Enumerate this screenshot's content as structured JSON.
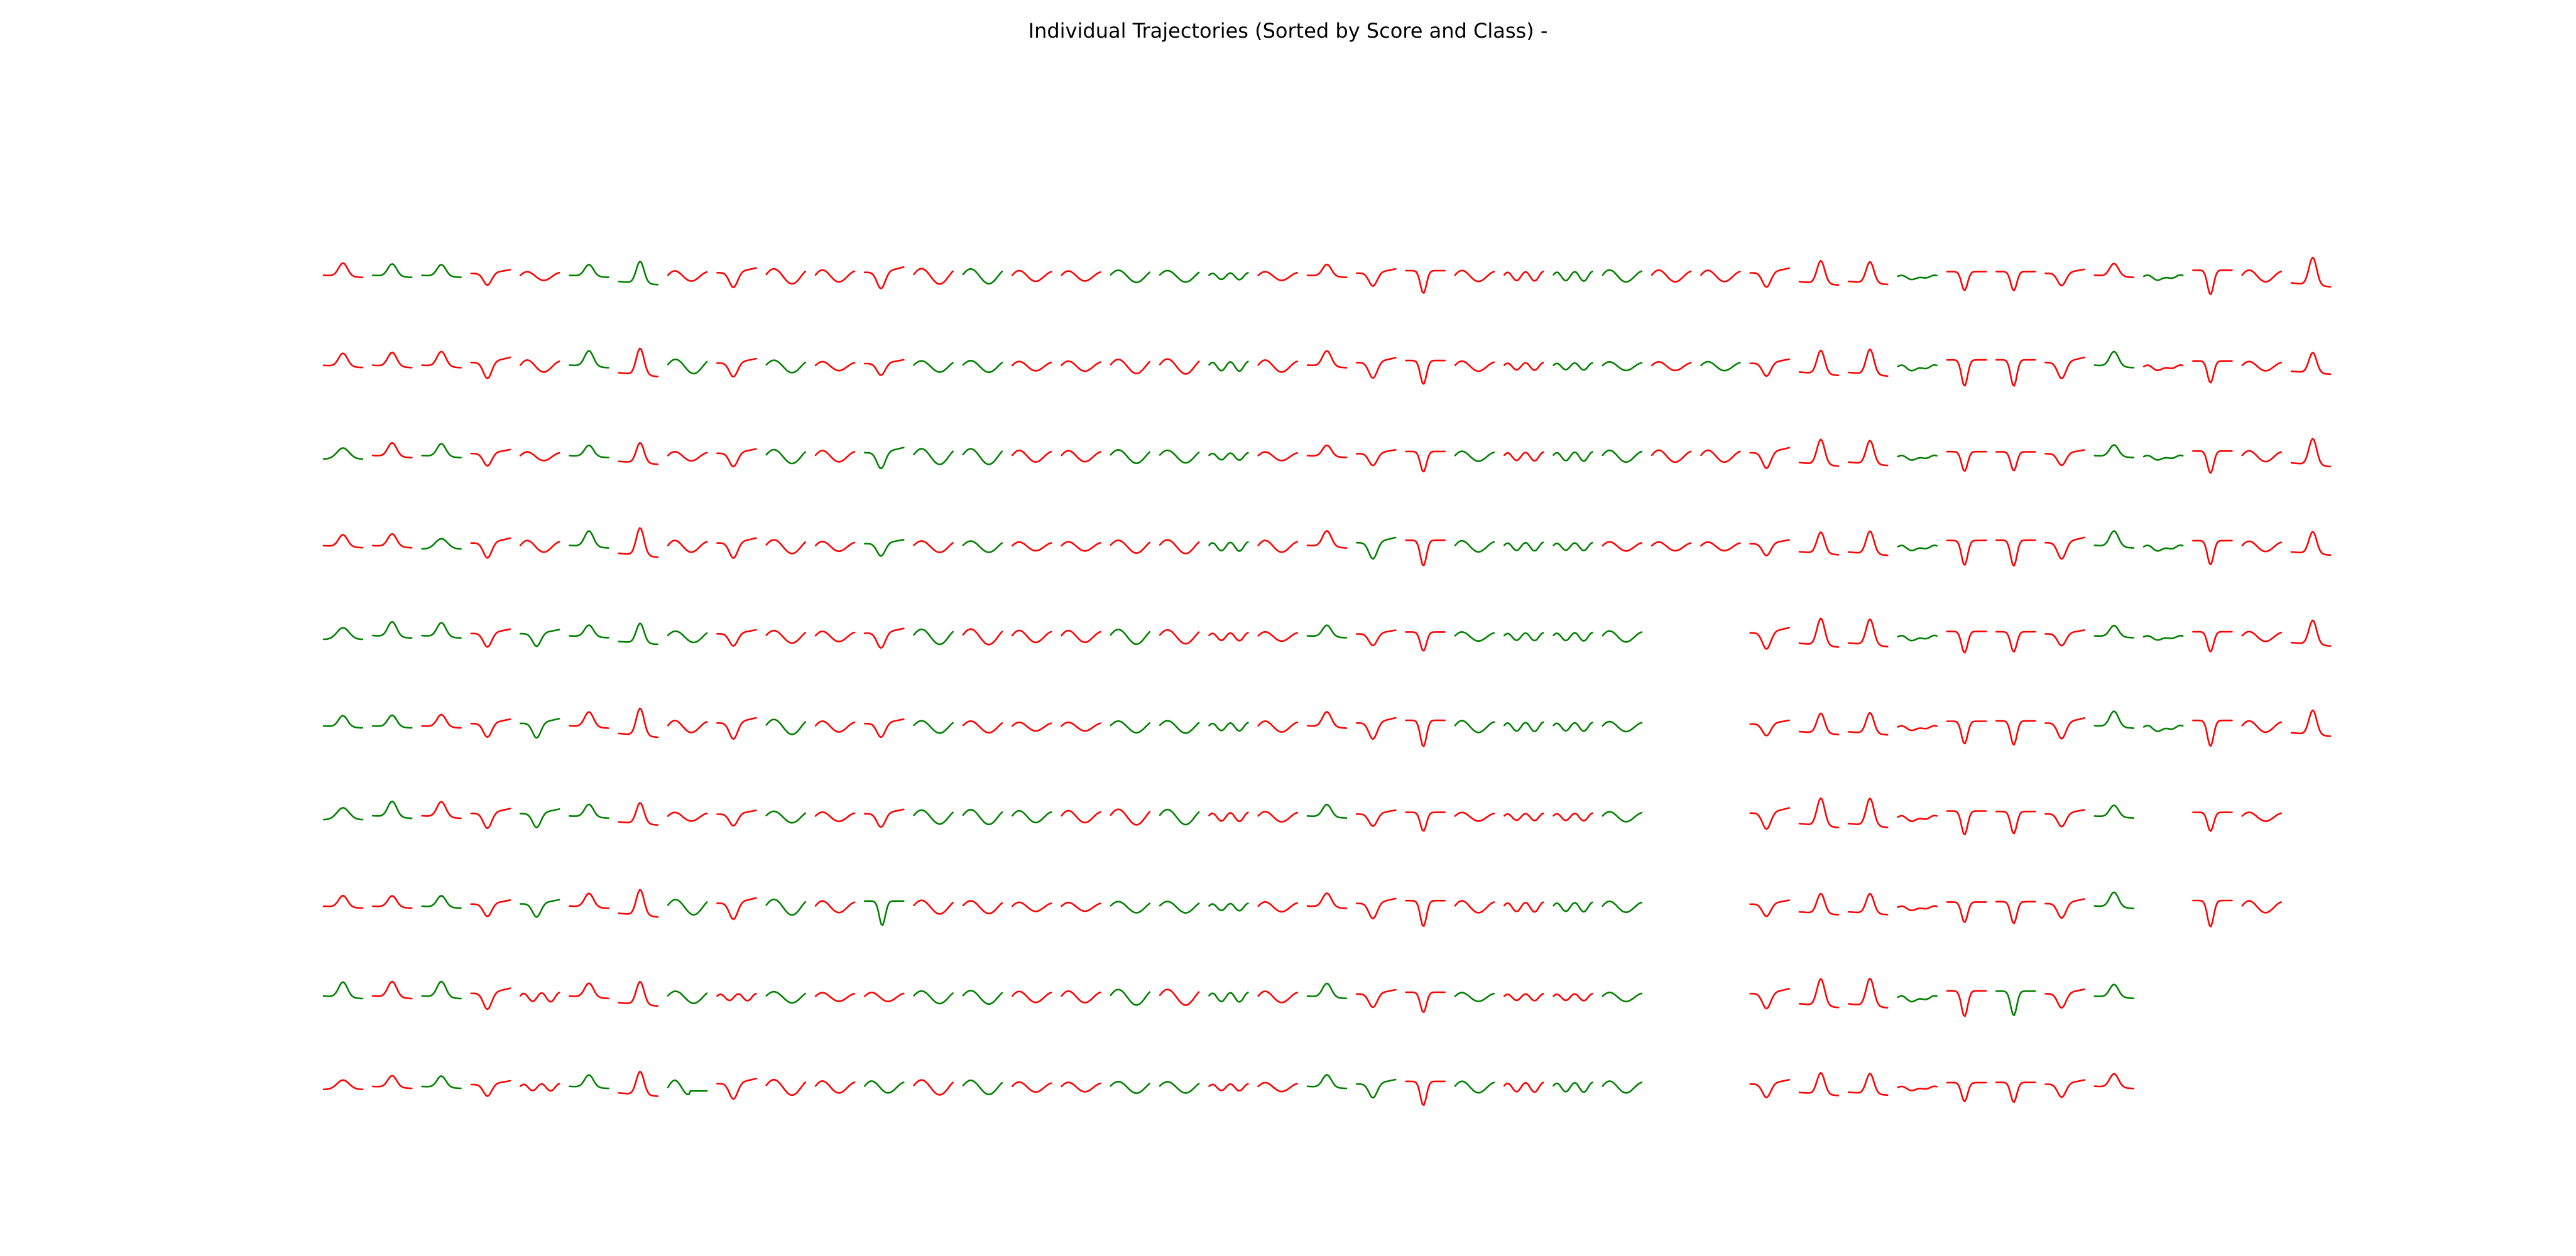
{
  "chart_data": {
    "type": "line",
    "title": "Individual Trajectories (Sorted by Score and Class) -",
    "xlabel": "",
    "ylabel": "",
    "axes_visible": false,
    "grid": false,
    "colors": {
      "class_red": "#ff0000",
      "class_green": "#008000"
    },
    "rows_per_column": 10,
    "columns": [
      {
        "color": [
          "r",
          "r",
          "g",
          "r",
          "g",
          "g",
          "g",
          "r",
          "g",
          "r"
        ],
        "shape": [
          "peak",
          "peak",
          "wide",
          "peak",
          "wide",
          "peak",
          "wide",
          "peak",
          "peak",
          "wide"
        ]
      },
      {
        "color": [
          "g",
          "r",
          "r",
          "r",
          "g",
          "g",
          "g",
          "r",
          "r",
          "r"
        ],
        "shape": [
          "peak",
          "peak",
          "peak",
          "peak",
          "peak",
          "peak",
          "peak",
          "peak",
          "peak",
          "peak"
        ]
      },
      {
        "color": [
          "g",
          "r",
          "g",
          "g",
          "g",
          "r",
          "r",
          "g",
          "g",
          "g"
        ],
        "shape": [
          "peak",
          "peak",
          "peak",
          "wide",
          "peak",
          "peak",
          "peak",
          "peak",
          "peak",
          "peak"
        ]
      },
      {
        "color": [
          "r",
          "r",
          "r",
          "r",
          "r",
          "r",
          "r",
          "r",
          "r",
          "r"
        ],
        "shape": [
          "valley",
          "valley",
          "valley",
          "valley",
          "valley",
          "valley",
          "valley",
          "valley",
          "valley",
          "valley"
        ]
      },
      {
        "color": [
          "r",
          "r",
          "r",
          "r",
          "g",
          "g",
          "g",
          "g",
          "r",
          "r"
        ],
        "shape": [
          "wave",
          "wave",
          "wave",
          "wave",
          "valley",
          "valley",
          "valley",
          "valley",
          "wiggle",
          "wiggle"
        ]
      },
      {
        "color": [
          "g",
          "g",
          "g",
          "g",
          "g",
          "r",
          "g",
          "r",
          "r",
          "g"
        ],
        "shape": [
          "peak",
          "peak",
          "peak",
          "peak",
          "peak",
          "peak",
          "peak",
          "peak",
          "peak",
          "peak"
        ]
      },
      {
        "color": [
          "g",
          "r",
          "r",
          "r",
          "g",
          "r",
          "r",
          "r",
          "r",
          "r"
        ],
        "shape": [
          "tall",
          "tall",
          "tall",
          "tall",
          "tall",
          "tall",
          "tall",
          "tall",
          "tall",
          "tall"
        ]
      },
      {
        "color": [
          "r",
          "g",
          "r",
          "r",
          "g",
          "r",
          "r",
          "g",
          "g",
          "g"
        ],
        "shape": [
          "wave",
          "bump",
          "wave",
          "wave",
          "bump",
          "wave",
          "wave",
          "bump",
          "bump",
          "step"
        ]
      },
      {
        "color": [
          "r",
          "r",
          "r",
          "r",
          "r",
          "r",
          "r",
          "r",
          "r",
          "r"
        ],
        "shape": [
          "valley",
          "valley",
          "valley",
          "valley",
          "valley",
          "valley",
          "valley",
          "valley",
          "wiggle",
          "valley"
        ]
      },
      {
        "color": [
          "r",
          "g",
          "g",
          "r",
          "r",
          "g",
          "g",
          "g",
          "g",
          "r"
        ],
        "shape": [
          "bump",
          "bump",
          "bump",
          "bump",
          "bump",
          "bump",
          "bump",
          "bump",
          "bump",
          "bump"
        ]
      },
      {
        "color": [
          "r",
          "r",
          "r",
          "r",
          "r",
          "r",
          "r",
          "r",
          "r",
          "r"
        ],
        "shape": [
          "wave",
          "wave",
          "wave",
          "wave",
          "wave",
          "wave",
          "wave",
          "wave",
          "wave",
          "wave"
        ]
      },
      {
        "color": [
          "r",
          "r",
          "g",
          "g",
          "r",
          "r",
          "r",
          "g",
          "r",
          "g"
        ],
        "shape": [
          "valley",
          "valley",
          "valley",
          "valley",
          "valley",
          "valley",
          "valley",
          "deepv",
          "wave",
          "wave"
        ]
      },
      {
        "color": [
          "r",
          "g",
          "g",
          "r",
          "g",
          "g",
          "g",
          "r",
          "g",
          "r"
        ],
        "shape": [
          "bump",
          "bump",
          "bump",
          "bump",
          "bump",
          "bump",
          "bump",
          "bump",
          "bump",
          "bump"
        ]
      },
      {
        "color": [
          "g",
          "g",
          "g",
          "g",
          "r",
          "r",
          "g",
          "r",
          "g",
          "g"
        ],
        "shape": [
          "bump",
          "bump",
          "bump",
          "bump",
          "bump",
          "bump",
          "bump",
          "bump",
          "bump",
          "bump"
        ]
      },
      {
        "color": [
          "r",
          "r",
          "r",
          "r",
          "r",
          "r",
          "g",
          "r",
          "r",
          "r"
        ],
        "shape": [
          "wave",
          "wave",
          "wave",
          "wave",
          "wave",
          "wave",
          "wave",
          "wave",
          "wave",
          "wave"
        ]
      },
      {
        "color": [
          "r",
          "r",
          "r",
          "r",
          "r",
          "r",
          "r",
          "r",
          "r",
          "r"
        ],
        "shape": [
          "wave",
          "wave",
          "wave",
          "wave",
          "wave",
          "wave",
          "wave",
          "wave",
          "wave",
          "wave"
        ]
      },
      {
        "color": [
          "g",
          "r",
          "g",
          "r",
          "g",
          "g",
          "r",
          "g",
          "g",
          "g"
        ],
        "shape": [
          "bump",
          "bump",
          "bump",
          "bump",
          "bump",
          "bump",
          "bump",
          "bump",
          "bump",
          "bump"
        ]
      },
      {
        "color": [
          "g",
          "r",
          "g",
          "r",
          "r",
          "g",
          "g",
          "g",
          "r",
          "g"
        ],
        "shape": [
          "bump",
          "bump",
          "bump",
          "bump",
          "bump",
          "bump",
          "bump",
          "bump",
          "bump",
          "bump"
        ]
      },
      {
        "color": [
          "g",
          "g",
          "g",
          "g",
          "r",
          "g",
          "r",
          "g",
          "g",
          "r"
        ],
        "shape": [
          "wiggle",
          "wiggle",
          "wiggle",
          "wiggle",
          "wiggle",
          "wiggle",
          "wiggle",
          "wiggle",
          "wiggle",
          "wiggle"
        ]
      },
      {
        "color": [
          "r",
          "r",
          "r",
          "r",
          "r",
          "r",
          "r",
          "r",
          "r",
          "r"
        ],
        "shape": [
          "wave",
          "wave",
          "wave",
          "wave",
          "wave",
          "wave",
          "wave",
          "wave",
          "wave",
          "wave"
        ]
      },
      {
        "color": [
          "r",
          "r",
          "r",
          "r",
          "g",
          "r",
          "g",
          "r",
          "g",
          "g"
        ],
        "shape": [
          "peak",
          "peak",
          "peak",
          "peak",
          "peak",
          "peak",
          "peak",
          "peak",
          "peak",
          "peak"
        ]
      },
      {
        "color": [
          "r",
          "r",
          "r",
          "g",
          "r",
          "r",
          "r",
          "r",
          "r",
          "g"
        ],
        "shape": [
          "valley",
          "valley",
          "valley",
          "valley",
          "valley",
          "valley",
          "valley",
          "valley",
          "valley",
          "valley"
        ]
      },
      {
        "color": [
          "r",
          "r",
          "r",
          "r",
          "r",
          "r",
          "r",
          "r",
          "r",
          "r"
        ],
        "shape": [
          "deepv",
          "deepv",
          "deepv",
          "deepv",
          "deepv",
          "deepv",
          "deepv",
          "deepv",
          "deepv",
          "deepv"
        ]
      },
      {
        "color": [
          "r",
          "r",
          "g",
          "g",
          "g",
          "g",
          "r",
          "r",
          "g",
          "g"
        ],
        "shape": [
          "wave",
          "wave",
          "wave",
          "wave",
          "wave",
          "wave",
          "wave",
          "wave",
          "wave",
          "wave"
        ]
      },
      {
        "color": [
          "r",
          "r",
          "r",
          "g",
          "g",
          "g",
          "r",
          "r",
          "r",
          "r"
        ],
        "shape": [
          "wiggle",
          "wiggle",
          "wiggle",
          "wiggle",
          "wiggle",
          "wiggle",
          "wiggle",
          "wiggle",
          "wiggle",
          "wiggle"
        ]
      },
      {
        "color": [
          "g",
          "g",
          "g",
          "g",
          "g",
          "g",
          "r",
          "g",
          "r",
          "g"
        ],
        "shape": [
          "wiggle",
          "wiggle",
          "wiggle",
          "wiggle",
          "wiggle",
          "wiggle",
          "wiggle",
          "wiggle",
          "wiggle",
          "wiggle"
        ]
      },
      {
        "color": [
          "g",
          "g",
          "g",
          "r",
          "g",
          "g",
          "g",
          "g",
          "g",
          "g"
        ],
        "shape": [
          "wave",
          "wave",
          "wave",
          "wave",
          "wave",
          "wave",
          "wave",
          "wave",
          "wave",
          "wave"
        ]
      },
      {
        "color": [
          "r",
          "r",
          "r",
          "r"
        ],
        "shape": [
          "wave",
          "wave",
          "wave",
          "wave"
        ]
      },
      {
        "color": [
          "r",
          "g",
          "r",
          "r"
        ],
        "shape": [
          "wave",
          "wave",
          "wave",
          "wave"
        ]
      },
      {
        "color": [
          "r",
          "r",
          "r",
          "r",
          "r",
          "r",
          "r",
          "r",
          "r",
          "r"
        ],
        "shape": [
          "valley",
          "valley",
          "valley",
          "valley",
          "valley",
          "valley",
          "valley",
          "valley",
          "valley",
          "valley"
        ]
      },
      {
        "color": [
          "r",
          "r",
          "r",
          "r",
          "r",
          "r",
          "r",
          "r",
          "r",
          "r"
        ],
        "shape": [
          "tall",
          "tall",
          "tall",
          "tall",
          "tall",
          "tall",
          "tall",
          "tall",
          "tall",
          "tall"
        ]
      },
      {
        "color": [
          "r",
          "r",
          "r",
          "r",
          "r",
          "r",
          "r",
          "r",
          "r",
          "r"
        ],
        "shape": [
          "tall",
          "tall",
          "tall",
          "tall",
          "tall",
          "tall",
          "tall",
          "tall",
          "tall",
          "tall"
        ]
      },
      {
        "color": [
          "g",
          "g",
          "g",
          "g",
          "g",
          "r",
          "r",
          "r",
          "g",
          "r"
        ],
        "shape": [
          "flat",
          "flat",
          "flat",
          "flat",
          "flat",
          "flat",
          "flat",
          "flat",
          "flat",
          "flat"
        ]
      },
      {
        "color": [
          "r",
          "r",
          "r",
          "r",
          "r",
          "r",
          "r",
          "r",
          "r",
          "r"
        ],
        "shape": [
          "deepv",
          "deepv",
          "deepv",
          "deepv",
          "deepv",
          "deepv",
          "deepv",
          "deepv",
          "deepv",
          "deepv"
        ]
      },
      {
        "color": [
          "r",
          "r",
          "r",
          "r",
          "r",
          "r",
          "r",
          "r",
          "g",
          "r"
        ],
        "shape": [
          "deepv",
          "deepv",
          "deepv",
          "deepv",
          "deepv",
          "deepv",
          "deepv",
          "deepv",
          "deepv",
          "deepv"
        ]
      },
      {
        "color": [
          "r",
          "r",
          "r",
          "r",
          "r",
          "r",
          "r",
          "r",
          "r",
          "r"
        ],
        "shape": [
          "valley",
          "valley",
          "valley",
          "valley",
          "valley",
          "valley",
          "valley",
          "valley",
          "valley",
          "valley"
        ]
      },
      {
        "color": [
          "r",
          "g",
          "g",
          "g",
          "g",
          "g",
          "g",
          "g",
          "g",
          "r"
        ],
        "shape": [
          "peak",
          "peak",
          "peak",
          "peak",
          "peak",
          "peak",
          "peak",
          "peak",
          "peak",
          "peak"
        ]
      },
      {
        "color": [
          "g",
          "r",
          "g",
          "g",
          "g",
          "g"
        ],
        "shape": [
          "flat",
          "flat",
          "flat",
          "flat",
          "flat",
          "flat"
        ]
      },
      {
        "color": [
          "r",
          "r",
          "r",
          "r",
          "r",
          "r",
          "r",
          "r"
        ],
        "shape": [
          "deepv",
          "deepv",
          "deepv",
          "deepv",
          "deepv",
          "deepv",
          "deepv",
          "deepv"
        ]
      },
      {
        "color": [
          "r",
          "r",
          "r",
          "r",
          "r",
          "r",
          "r",
          "r"
        ],
        "shape": [
          "wave",
          "wave",
          "wave",
          "wave",
          "wave",
          "wave",
          "wave",
          "wave"
        ]
      },
      {
        "color": [
          "r",
          "r",
          "r",
          "r",
          "r",
          "r"
        ],
        "shape": [
          "tall",
          "tall",
          "tall",
          "tall",
          "tall",
          "tall"
        ]
      }
    ]
  }
}
